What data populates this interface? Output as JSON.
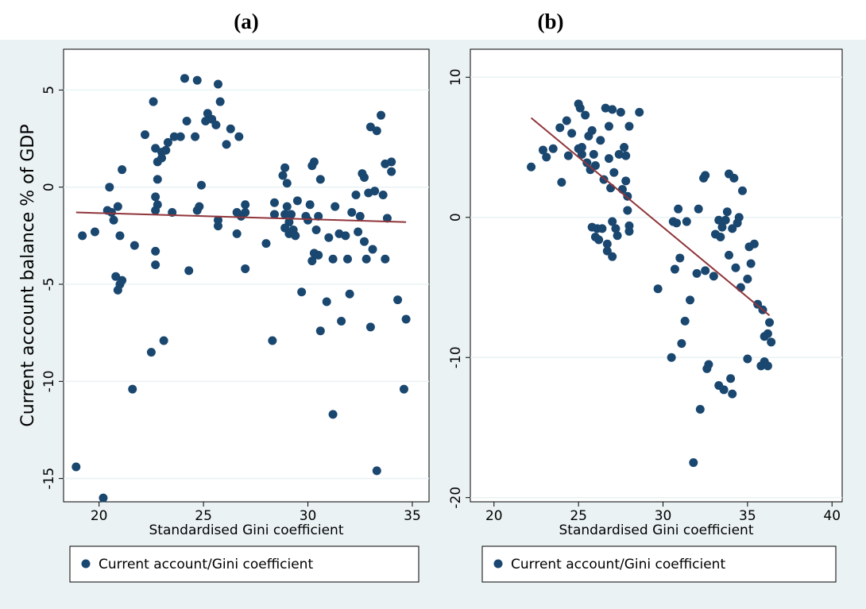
{
  "chart_data": [
    {
      "type": "scatter",
      "title": "(a)",
      "x_label": "Standardised Gini coefficient",
      "y_label": "Current account balance % of GDP",
      "xlim": [
        18.3,
        35.8
      ],
      "xticks": [
        20,
        25,
        30,
        35
      ],
      "ylim": [
        -16.2,
        7.1
      ],
      "yticks": [
        -15,
        -10,
        -5,
        0,
        5
      ],
      "grid": true,
      "series": [
        {
          "name": "Current account/Gini coefficient",
          "color": "#1a476f",
          "x": [
            18.9,
            19.2,
            19.8,
            20.2,
            20.4,
            20.5,
            20.6,
            20.7,
            20.8,
            20.9,
            20.9,
            21.0,
            21.0,
            21.1,
            21.1,
            21.6,
            21.7,
            22.2,
            22.5,
            22.6,
            22.7,
            22.7,
            22.7,
            22.7,
            22.7,
            22.8,
            22.8,
            22.8,
            23.0,
            23.0,
            23.1,
            23.2,
            23.3,
            23.5,
            23.6,
            23.9,
            24.1,
            24.2,
            24.3,
            24.6,
            24.7,
            24.7,
            24.8,
            24.9,
            25.1,
            25.2,
            25.4,
            25.6,
            25.7,
            25.8,
            25.7,
            25.7,
            26.1,
            26.3,
            26.6,
            26.6,
            26.7,
            26.8,
            27.0,
            27.0,
            27.0,
            28.0,
            28.3,
            28.4,
            28.4,
            28.8,
            28.9,
            28.9,
            28.9,
            29.0,
            29.0,
            29.1,
            29.1,
            29.2,
            29.3,
            29.4,
            29.5,
            29.7,
            29.9,
            30.0,
            30.1,
            30.2,
            30.2,
            30.3,
            30.3,
            30.4,
            30.5,
            30.5,
            30.6,
            30.6,
            30.9,
            31.0,
            31.2,
            31.2,
            31.3,
            31.5,
            31.6,
            31.8,
            31.9,
            32.0,
            32.1,
            32.3,
            32.4,
            32.5,
            32.6,
            32.7,
            32.7,
            32.8,
            32.9,
            33.0,
            33.0,
            33.1,
            33.2,
            33.3,
            33.3,
            33.5,
            33.6,
            33.7,
            33.7,
            33.8,
            34.0,
            34.0,
            34.3,
            34.6,
            34.7
          ],
          "values": [
            -14.4,
            -2.5,
            -2.3,
            -16.0,
            -1.2,
            0.0,
            -1.3,
            -1.7,
            -4.6,
            -5.3,
            -1.0,
            -2.5,
            -5.0,
            0.9,
            -4.8,
            -10.4,
            -3.0,
            2.7,
            -8.5,
            4.4,
            2.0,
            -0.5,
            -1.2,
            -3.3,
            -4.0,
            1.3,
            -0.9,
            0.4,
            1.8,
            1.5,
            -7.9,
            1.9,
            2.3,
            -1.3,
            2.6,
            2.6,
            5.6,
            3.4,
            -4.3,
            2.6,
            -1.2,
            5.5,
            -1.0,
            0.1,
            3.4,
            3.8,
            3.5,
            3.2,
            5.3,
            4.4,
            -1.7,
            -2.0,
            2.2,
            3.0,
            -1.3,
            -2.4,
            2.6,
            -1.5,
            -4.2,
            -0.9,
            -1.3,
            -2.9,
            -7.9,
            -1.4,
            -0.8,
            0.6,
            1.0,
            -1.4,
            -2.1,
            0.2,
            -1.0,
            -1.8,
            -2.4,
            -1.4,
            -2.2,
            -2.5,
            -0.7,
            -5.4,
            -1.5,
            -1.7,
            -0.9,
            1.1,
            -3.8,
            1.3,
            -3.4,
            -2.2,
            -1.5,
            -3.5,
            -7.4,
            0.4,
            -5.9,
            -2.6,
            -11.7,
            -3.7,
            -1.0,
            -2.4,
            -6.9,
            -2.5,
            -3.7,
            -5.5,
            -1.3,
            -0.4,
            -2.3,
            -1.5,
            0.7,
            0.5,
            -2.8,
            -3.7,
            -0.3,
            3.1,
            -7.2,
            -3.2,
            -0.2,
            2.9,
            -14.6,
            3.7,
            -0.4,
            1.2,
            -3.7,
            -1.6,
            1.3,
            0.8,
            -5.8,
            -10.4,
            -6.8
          ]
        }
      ],
      "fit_line": {
        "color": "#90353b",
        "x": [
          18.9,
          34.7
        ],
        "values": [
          -1.3,
          -1.8
        ]
      }
    },
    {
      "type": "scatter",
      "title": "(b)",
      "x_label": "Standardised Gini coefficient",
      "xlim": [
        18.6,
        40.6
      ],
      "xticks": [
        20,
        25,
        30,
        35,
        40
      ],
      "ylim": [
        -20.3,
        12.0
      ],
      "yticks": [
        -20,
        -10,
        0,
        10
      ],
      "grid": true,
      "series": [
        {
          "name": "Current account/Gini coefficient",
          "color": "#1a476f",
          "x": [
            22.2,
            22.9,
            23.1,
            23.5,
            23.9,
            24.0,
            24.3,
            24.4,
            24.6,
            25.0,
            25.0,
            25.1,
            25.2,
            25.2,
            25.4,
            25.5,
            25.6,
            25.7,
            25.8,
            25.8,
            25.9,
            26.0,
            26.0,
            26.1,
            26.2,
            26.3,
            26.4,
            26.5,
            26.6,
            26.7,
            26.7,
            26.8,
            26.8,
            26.9,
            27.0,
            27.0,
            27.0,
            27.1,
            27.2,
            27.3,
            27.4,
            27.5,
            27.6,
            27.7,
            27.8,
            27.8,
            27.9,
            27.9,
            28.0,
            28.0,
            28.0,
            28.6,
            29.7,
            30.5,
            30.6,
            30.7,
            30.8,
            30.9,
            31.0,
            31.1,
            31.3,
            31.4,
            31.6,
            31.8,
            32.0,
            32.1,
            32.2,
            32.4,
            32.5,
            32.5,
            32.6,
            32.7,
            33.0,
            33.1,
            33.3,
            33.3,
            33.4,
            33.5,
            33.6,
            33.7,
            33.8,
            33.9,
            33.9,
            34.0,
            34.1,
            34.1,
            34.2,
            34.3,
            34.4,
            34.5,
            34.6,
            34.7,
            35.0,
            35.0,
            35.1,
            35.2,
            35.4,
            35.6,
            35.8,
            35.9,
            36.0,
            36.0,
            36.2,
            36.2,
            36.3,
            36.4
          ],
          "values": [
            3.6,
            4.8,
            4.3,
            4.9,
            6.4,
            2.5,
            6.9,
            4.4,
            6.0,
            8.1,
            4.9,
            7.8,
            5.0,
            4.5,
            7.3,
            3.9,
            5.8,
            3.4,
            -0.7,
            6.2,
            4.5,
            3.7,
            -1.4,
            -0.8,
            -1.6,
            5.5,
            -0.8,
            2.7,
            7.8,
            -1.9,
            -2.4,
            6.5,
            4.2,
            2.1,
            7.7,
            -0.3,
            -2.8,
            3.2,
            -0.8,
            -1.3,
            4.5,
            7.5,
            2.0,
            5.0,
            2.6,
            4.4,
            1.5,
            0.5,
            -0.6,
            -1.0,
            6.5,
            7.5,
            -5.1,
            -10.0,
            -0.3,
            -3.7,
            -0.4,
            0.6,
            -2.9,
            -9.0,
            -7.4,
            -0.3,
            -5.9,
            -17.5,
            -4.0,
            0.6,
            -13.7,
            2.8,
            3.0,
            -3.8,
            -10.8,
            -10.5,
            -4.2,
            -1.2,
            -12.0,
            -0.2,
            -1.4,
            -0.7,
            -12.3,
            -0.2,
            0.4,
            3.1,
            -2.7,
            -11.5,
            -0.8,
            -12.6,
            2.8,
            -3.6,
            -0.4,
            0.0,
            -5.0,
            1.9,
            -4.4,
            -10.1,
            -2.1,
            -3.3,
            -1.9,
            -6.2,
            -10.6,
            -6.6,
            -8.5,
            -10.3,
            -10.6,
            -8.3,
            -7.5,
            -8.9
          ]
        }
      ],
      "fit_line": {
        "color": "#90353b",
        "x": [
          22.2,
          36.3
        ],
        "values": [
          7.1,
          -7.0
        ]
      }
    }
  ]
}
